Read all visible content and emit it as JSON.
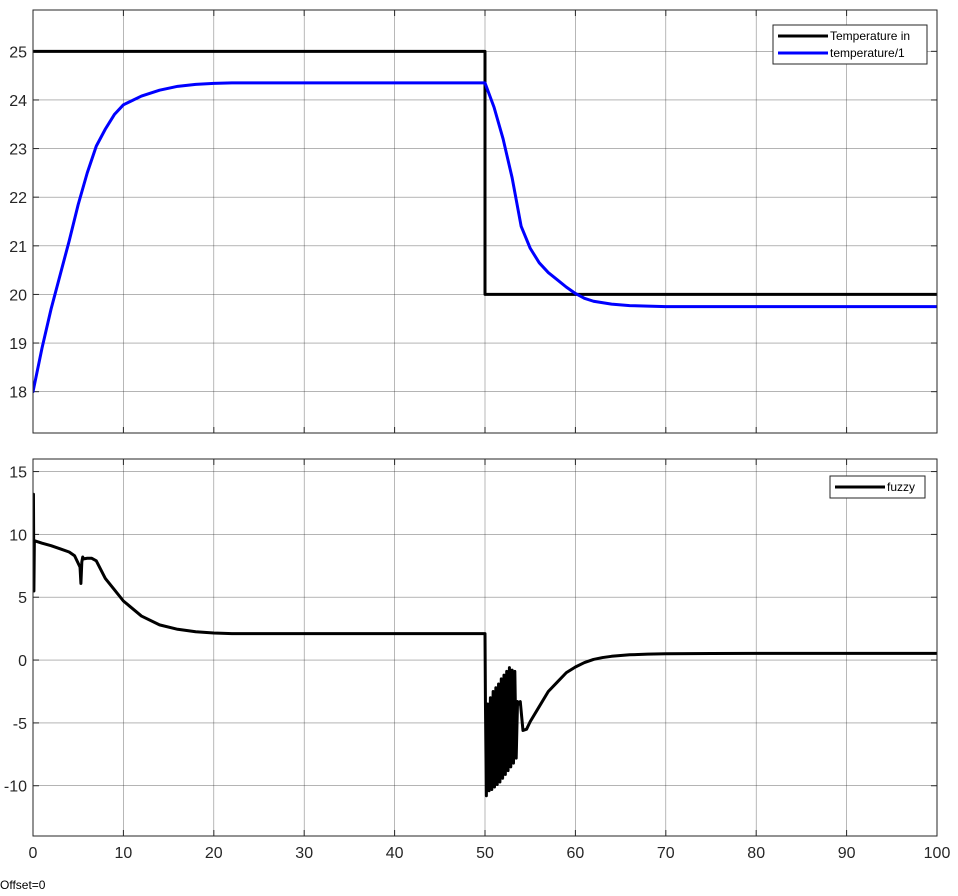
{
  "offset_label": "Offset=0",
  "colors": {
    "grid": "#262626",
    "text": "#262626",
    "black": "#000000",
    "blue": "#0000ff"
  },
  "chart_data": [
    {
      "type": "line",
      "title": "",
      "xlabel": "",
      "ylabel": "",
      "xlim": [
        0,
        100
      ],
      "ylim": [
        17.15,
        25.85
      ],
      "xticks": [
        0,
        10,
        20,
        30,
        40,
        50,
        60,
        70,
        80,
        90,
        100
      ],
      "yticks": [
        18,
        19,
        20,
        21,
        22,
        23,
        24,
        25
      ],
      "show_x_tick_labels": false,
      "grid": true,
      "legend": "top-right",
      "series": [
        {
          "name": "Temperature in",
          "color": "#000000",
          "x": [
            0,
            50,
            50,
            100
          ],
          "y": [
            25,
            25,
            20,
            20
          ]
        },
        {
          "name": "temperature/1",
          "color": "#0000ff",
          "x": [
            0,
            1,
            2,
            3,
            4,
            5,
            6,
            7,
            8,
            9,
            10,
            12,
            14,
            16,
            18,
            20,
            22,
            25,
            30,
            35,
            40,
            45,
            50,
            51,
            52,
            53,
            54,
            55,
            56,
            57,
            58,
            59,
            60,
            61,
            62,
            64,
            66,
            68,
            70,
            75,
            80,
            90,
            100
          ],
          "y": [
            18.0,
            18.9,
            19.7,
            20.4,
            21.1,
            21.85,
            22.5,
            23.05,
            23.4,
            23.7,
            23.9,
            24.08,
            24.2,
            24.28,
            24.32,
            24.34,
            24.35,
            24.35,
            24.35,
            24.35,
            24.35,
            24.35,
            24.35,
            23.85,
            23.2,
            22.4,
            21.4,
            20.95,
            20.65,
            20.45,
            20.3,
            20.15,
            20.02,
            19.92,
            19.86,
            19.8,
            19.77,
            19.76,
            19.75,
            19.75,
            19.75,
            19.75,
            19.75
          ]
        }
      ]
    },
    {
      "type": "line",
      "title": "",
      "xlabel": "",
      "ylabel": "",
      "xlim": [
        0,
        100
      ],
      "ylim": [
        -14,
        16
      ],
      "xticks": [
        0,
        10,
        20,
        30,
        40,
        50,
        60,
        70,
        80,
        90,
        100
      ],
      "yticks": [
        -10,
        -5,
        0,
        5,
        10,
        15
      ],
      "show_x_tick_labels": true,
      "grid": true,
      "legend": "top-right",
      "series": [
        {
          "name": "fuzzy",
          "color": "#000000",
          "x": [
            0,
            0.05,
            0.1,
            0.15,
            1,
            2,
            3,
            4,
            4.6,
            5.2,
            5.3,
            5.4,
            5.5,
            5.6,
            6,
            6.5,
            7,
            8,
            9,
            10,
            12,
            14,
            16,
            18,
            20,
            22,
            25,
            30,
            35,
            40,
            45,
            50,
            50.05,
            50.15,
            50.3,
            50.45,
            50.6,
            50.75,
            50.9,
            51.05,
            51.2,
            51.35,
            51.5,
            51.65,
            51.8,
            51.95,
            52.1,
            52.25,
            52.4,
            52.55,
            52.7,
            52.85,
            53.0,
            53.15,
            53.3,
            53.45,
            53.6,
            53.75,
            53.9,
            54.2,
            54.6,
            55,
            56,
            57,
            58,
            59,
            60,
            61,
            62,
            63,
            64,
            66,
            68,
            70,
            75,
            80,
            90,
            100
          ],
          "y": [
            9.5,
            13.2,
            5.5,
            9.5,
            9.3,
            9.1,
            8.85,
            8.6,
            8.3,
            7.4,
            6.1,
            7.8,
            8.2,
            8.05,
            8.1,
            8.1,
            7.9,
            6.5,
            5.6,
            4.7,
            3.5,
            2.8,
            2.45,
            2.25,
            2.15,
            2.1,
            2.1,
            2.1,
            2.1,
            2.1,
            2.1,
            2.1,
            -3.5,
            -10.8,
            -3.5,
            -10.4,
            -3.0,
            -10.3,
            -2.5,
            -10.1,
            -2.2,
            -9.9,
            -1.9,
            -9.7,
            -1.5,
            -9.4,
            -1.2,
            -9.1,
            -0.9,
            -8.8,
            -0.6,
            -8.5,
            -0.8,
            -8.2,
            -0.9,
            -7.8,
            -3.3,
            -3.5,
            -3.3,
            -5.6,
            -5.5,
            -4.9,
            -3.7,
            -2.5,
            -1.75,
            -1.0,
            -0.55,
            -0.2,
            0.05,
            0.2,
            0.3,
            0.42,
            0.47,
            0.5,
            0.52,
            0.53,
            0.53,
            0.53
          ]
        }
      ]
    }
  ]
}
